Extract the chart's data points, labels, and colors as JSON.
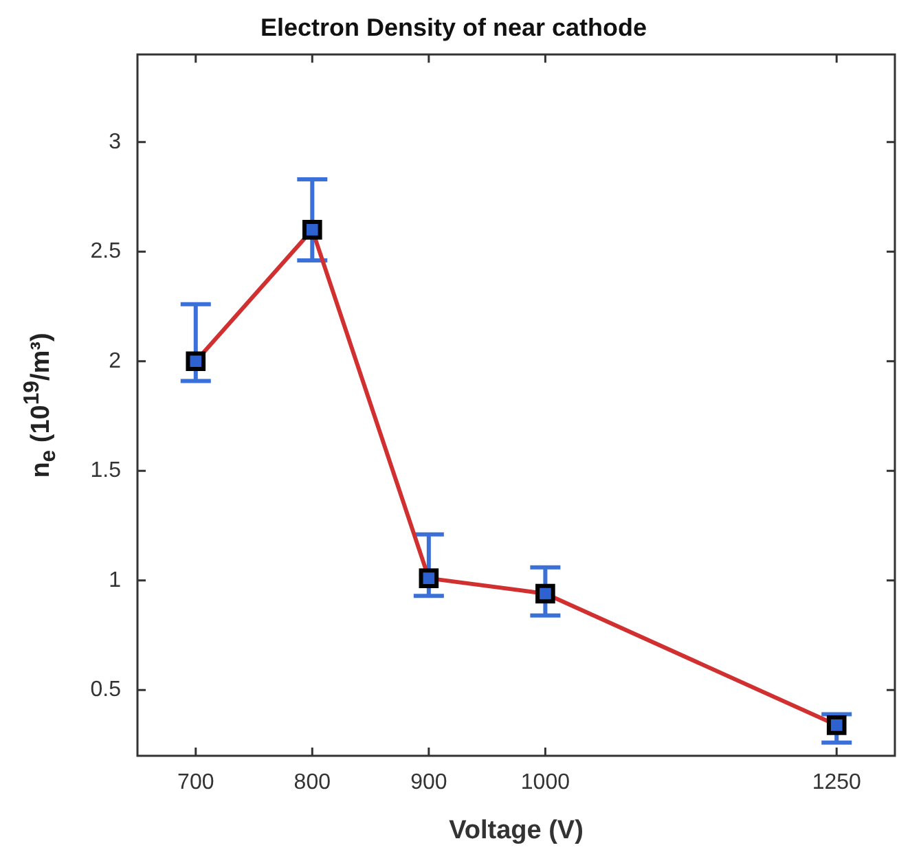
{
  "chart_data": {
    "type": "line",
    "title": "Electron Density of near cathode",
    "xlabel": "Voltage (V)",
    "ylabel": "n$_{e}$ (10$^{19}$/m³)",
    "x": [
      700,
      800,
      900,
      1000,
      1250
    ],
    "series": [
      {
        "color": "#d03030",
        "values": [
          2.0,
          2.6,
          1.01,
          0.94,
          0.34
        ],
        "errors": [
          [
            1.91,
            2.26
          ],
          [
            2.46,
            2.83
          ],
          [
            0.93,
            1.21
          ],
          [
            0.84,
            1.06
          ],
          [
            0.26,
            0.39
          ]
        ]
      }
    ],
    "xlim": [
      650,
      1300
    ],
    "xticks": [
      700,
      800,
      900,
      1000,
      1250
    ],
    "ylim": [
      0.2,
      3.4
    ],
    "yticks": [
      0.5,
      1,
      1.5,
      2,
      2.5,
      3
    ],
    "grid": false,
    "legend": false,
    "marker": "square",
    "line_style": "solid"
  }
}
